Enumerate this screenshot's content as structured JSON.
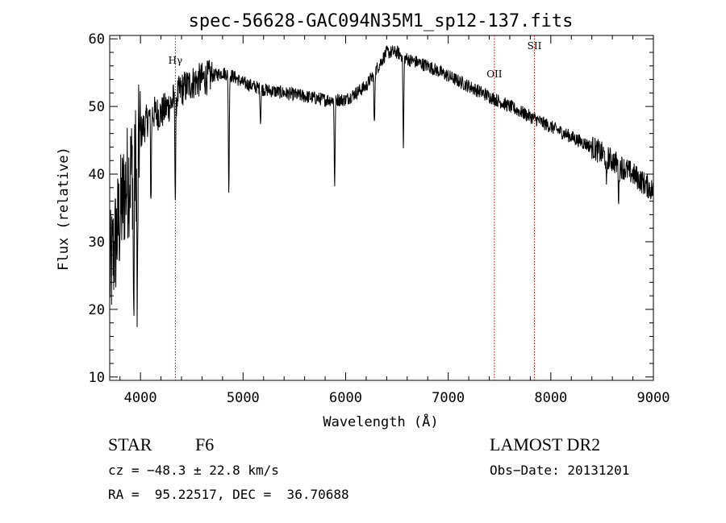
{
  "chart_data": {
    "type": "line",
    "title": "spec-56628-GAC094N35M1_sp12-137.fits",
    "xlabel": "Wavelength (Å)",
    "ylabel": "Flux (relative)",
    "xlim": [
      3700,
      9000
    ],
    "ylim": [
      9.5,
      60.5
    ],
    "xticks": [
      4000,
      5000,
      6000,
      7000,
      8000,
      9000
    ],
    "yticks": [
      10,
      20,
      30,
      40,
      50,
      60
    ],
    "grid": false,
    "line_color": "#000000",
    "marker_color": "#cc0000",
    "line_markers": [
      {
        "label": "Hγ",
        "x": 4340
      },
      {
        "label": "OII",
        "x": 7450
      },
      {
        "label": "SII",
        "x": 7840
      }
    ],
    "continuum": {
      "x": [
        3700,
        3780,
        3850,
        3900,
        3950,
        4000,
        4100,
        4200,
        4300,
        4400,
        4500,
        4600,
        4700,
        4800,
        4900,
        5000,
        5200,
        5400,
        5600,
        5800,
        6000,
        6200,
        6300,
        6400,
        6500,
        6600,
        6700,
        6800,
        7000,
        7200,
        7400,
        7600,
        7800,
        8000,
        8200,
        8400,
        8600,
        8800,
        9000
      ],
      "y": [
        25,
        32,
        38,
        40,
        42,
        46,
        49,
        49,
        50.5,
        52.5,
        53.5,
        54,
        54.5,
        55,
        54.5,
        53.5,
        52.5,
        52,
        51.5,
        51,
        51,
        53,
        55.5,
        58,
        58,
        57,
        56.5,
        56,
        54.5,
        53,
        51.5,
        50,
        48.5,
        47,
        45.5,
        44,
        42,
        40,
        37.5
      ]
    },
    "absorption_lines": [
      {
        "x": 3934,
        "depth": 24
      },
      {
        "x": 3969,
        "depth": 27
      },
      {
        "x": 4102,
        "depth": 13
      },
      {
        "x": 4340,
        "depth": 15
      },
      {
        "x": 4861,
        "depth": 18
      },
      {
        "x": 5170,
        "depth": 5
      },
      {
        "x": 5893,
        "depth": 13
      },
      {
        "x": 6280,
        "depth": 8
      },
      {
        "x": 6563,
        "depth": 14
      },
      {
        "x": 8542,
        "depth": 5
      },
      {
        "x": 8662,
        "depth": 5
      }
    ]
  },
  "info": {
    "class_label": "STAR",
    "subclass": "F6",
    "survey": "LAMOST DR2",
    "cz": "cz = −48.3 ± 22.8 km/s",
    "obs_date": "Obs−Date: 20131201",
    "coords": "RA =  95.22517, DEC =  36.70688"
  }
}
